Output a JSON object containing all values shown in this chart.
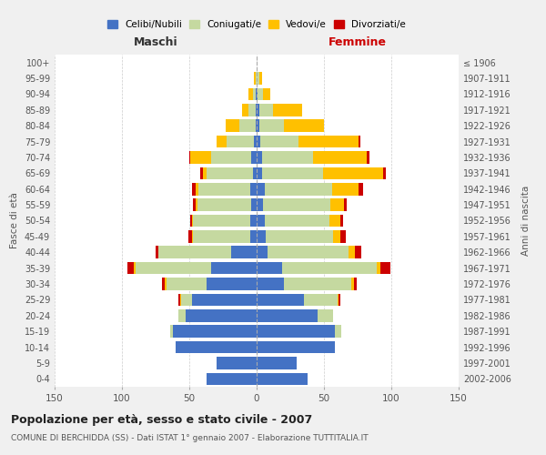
{
  "age_groups": [
    "0-4",
    "5-9",
    "10-14",
    "15-19",
    "20-24",
    "25-29",
    "30-34",
    "35-39",
    "40-44",
    "45-49",
    "50-54",
    "55-59",
    "60-64",
    "65-69",
    "70-74",
    "75-79",
    "80-84",
    "85-89",
    "90-94",
    "95-99",
    "100+"
  ],
  "birth_years": [
    "2002-2006",
    "1997-2001",
    "1992-1996",
    "1987-1991",
    "1982-1986",
    "1977-1981",
    "1972-1976",
    "1967-1971",
    "1962-1966",
    "1957-1961",
    "1952-1956",
    "1947-1951",
    "1942-1946",
    "1937-1941",
    "1932-1936",
    "1927-1931",
    "1922-1926",
    "1917-1921",
    "1912-1916",
    "1907-1911",
    "≤ 1906"
  ],
  "male_celibe": [
    37,
    30,
    60,
    62,
    53,
    48,
    37,
    34,
    19,
    5,
    5,
    4,
    5,
    3,
    4,
    2,
    1,
    1,
    1,
    0,
    0
  ],
  "male_coniug": [
    0,
    0,
    0,
    2,
    5,
    8,
    30,
    56,
    54,
    42,
    42,
    40,
    38,
    34,
    30,
    20,
    12,
    5,
    2,
    1,
    0
  ],
  "male_vedovo": [
    0,
    0,
    0,
    0,
    0,
    1,
    1,
    1,
    0,
    1,
    1,
    1,
    2,
    3,
    15,
    8,
    10,
    5,
    3,
    1,
    0
  ],
  "male_divorz": [
    0,
    0,
    0,
    0,
    0,
    1,
    2,
    5,
    2,
    3,
    1,
    2,
    3,
    2,
    1,
    0,
    0,
    0,
    0,
    0,
    0
  ],
  "fem_nubile": [
    38,
    30,
    58,
    58,
    45,
    35,
    20,
    19,
    8,
    7,
    6,
    5,
    6,
    4,
    4,
    3,
    2,
    2,
    1,
    0,
    0
  ],
  "fem_coniug": [
    0,
    0,
    0,
    5,
    12,
    25,
    50,
    70,
    60,
    50,
    48,
    50,
    50,
    45,
    38,
    28,
    18,
    10,
    4,
    2,
    0
  ],
  "fem_vedova": [
    0,
    0,
    0,
    0,
    0,
    1,
    2,
    3,
    5,
    5,
    8,
    10,
    20,
    45,
    40,
    45,
    30,
    22,
    5,
    2,
    0
  ],
  "fem_divorz": [
    0,
    0,
    0,
    0,
    0,
    1,
    2,
    7,
    5,
    4,
    2,
    2,
    3,
    2,
    2,
    1,
    0,
    0,
    0,
    0,
    0
  ],
  "colors": {
    "celibe": "#4472c4",
    "coniugato": "#c5d9a0",
    "vedovo": "#ffc000",
    "divorziato": "#cc0000"
  },
  "title": "Popolazione per età, sesso e stato civile - 2007",
  "subtitle": "COMUNE DI BERCHIDDA (SS) - Dati ISTAT 1° gennaio 2007 - Elaborazione TUTTITALIA.IT",
  "xlabel_left": "Maschi",
  "xlabel_right": "Femmine",
  "ylabel_left": "Fasce di età",
  "ylabel_right": "Anni di nascita",
  "xlim": 150,
  "legend_labels": [
    "Celibi/Nubili",
    "Coniugati/e",
    "Vedovi/e",
    "Divorziati/e"
  ],
  "bg_color": "#f0f0f0",
  "plot_bg": "#ffffff"
}
